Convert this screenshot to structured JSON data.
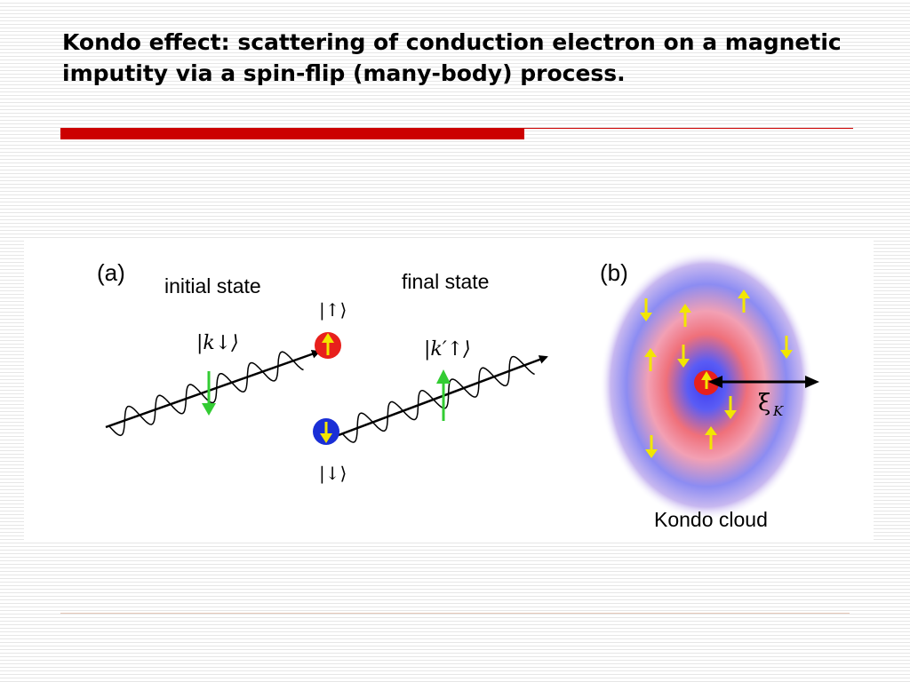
{
  "slide": {
    "title": "Kondo effect: scattering of conduction electron on a magnetic imputity via a spin-flip (many-body) process.",
    "caption": "Kondo cloud"
  },
  "panel_a": {
    "label": "(a)",
    "initial_state": "initial state",
    "final_state": "final state",
    "ket_k_down": "|k↓⟩",
    "ket_k_prime_up": "|k′↑⟩",
    "ket_up": "|↑⟩",
    "ket_down": "|↓⟩"
  },
  "panel_b": {
    "label": "(b)",
    "xi_symbol": "ξ",
    "xi_subscript": "K"
  },
  "colors": {
    "accent_red": "#cc0000",
    "spin_up_red": "#e8201c",
    "spin_down_blue": "#1a2fd6",
    "arrow_yellow": "#f2e600",
    "arrow_green": "#33cc33",
    "cloud_blue": "#5a5cf5",
    "cloud_pink": "#f0707a"
  }
}
